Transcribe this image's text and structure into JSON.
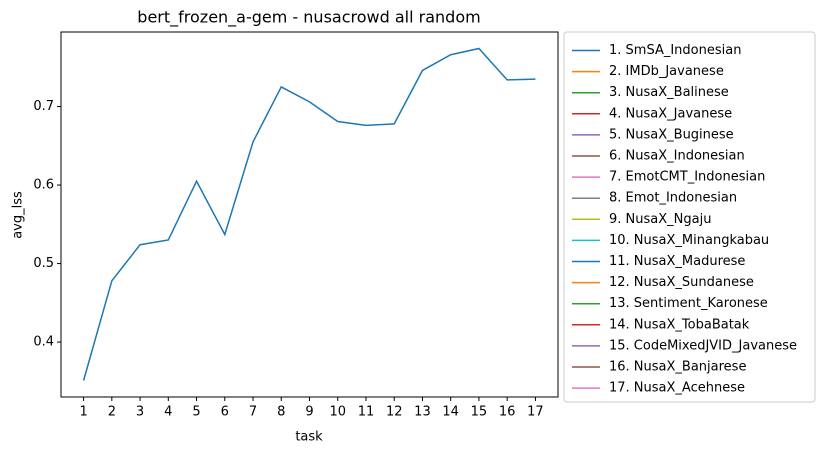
{
  "chart_data": {
    "type": "line",
    "title": "bert_frozen_a-gem - nusacrowd all random",
    "x_label": "task",
    "y_label": "avg_lss",
    "x": [
      1,
      2,
      3,
      4,
      5,
      6,
      7,
      8,
      9,
      10,
      11,
      12,
      13,
      14,
      15,
      16,
      17
    ],
    "xlim": [
      0.2,
      17.8
    ],
    "xticks": [
      1,
      2,
      3,
      4,
      5,
      6,
      7,
      8,
      9,
      10,
      11,
      12,
      13,
      14,
      15,
      16,
      17
    ],
    "ylim": [
      0.33,
      0.795
    ],
    "yticks": [
      0.4,
      0.5,
      0.6,
      0.7
    ],
    "legend": "outside right",
    "series": [
      {
        "name": "1. SmSA_Indonesian",
        "color": "#1f77b4",
        "values": [
          0.351,
          0.478,
          0.524,
          0.53,
          0.605,
          0.537,
          0.655,
          0.725,
          0.706,
          0.681,
          0.676,
          0.678,
          0.746,
          0.766,
          0.774,
          0.734,
          0.735
        ]
      },
      {
        "name": "2. IMDb_Javanese",
        "color": "#ff7f0e",
        "values": [
          null,
          null,
          null,
          null,
          null,
          null,
          null,
          null,
          null,
          null,
          null,
          null,
          null,
          null,
          null,
          null,
          null
        ]
      },
      {
        "name": "3. NusaX_Balinese",
        "color": "#2ca02c",
        "values": [
          null,
          null,
          null,
          null,
          null,
          null,
          null,
          null,
          null,
          null,
          null,
          null,
          null,
          null,
          null,
          null,
          null
        ]
      },
      {
        "name": "4. NusaX_Javanese",
        "color": "#d62728",
        "values": [
          null,
          null,
          null,
          null,
          null,
          null,
          null,
          null,
          null,
          null,
          null,
          null,
          null,
          null,
          null,
          null,
          null
        ]
      },
      {
        "name": "5. NusaX_Buginese",
        "color": "#9467bd",
        "values": [
          null,
          null,
          null,
          null,
          null,
          null,
          null,
          null,
          null,
          null,
          null,
          null,
          null,
          null,
          null,
          null,
          null
        ]
      },
      {
        "name": "6. NusaX_Indonesian",
        "color": "#8c564b",
        "values": [
          null,
          null,
          null,
          null,
          null,
          null,
          null,
          null,
          null,
          null,
          null,
          null,
          null,
          null,
          null,
          null,
          null
        ]
      },
      {
        "name": "7. EmotCMT_Indonesian",
        "color": "#e377c2",
        "values": [
          null,
          null,
          null,
          null,
          null,
          null,
          null,
          null,
          null,
          null,
          null,
          null,
          null,
          null,
          null,
          null,
          null
        ]
      },
      {
        "name": "8. Emot_Indonesian",
        "color": "#7f7f7f",
        "values": [
          null,
          null,
          null,
          null,
          null,
          null,
          null,
          null,
          null,
          null,
          null,
          null,
          null,
          null,
          null,
          null,
          null
        ]
      },
      {
        "name": "9. NusaX_Ngaju",
        "color": "#bcbd22",
        "values": [
          null,
          null,
          null,
          null,
          null,
          null,
          null,
          null,
          null,
          null,
          null,
          null,
          null,
          null,
          null,
          null,
          null
        ]
      },
      {
        "name": "10. NusaX_Minangkabau",
        "color": "#17becf",
        "values": [
          null,
          null,
          null,
          null,
          null,
          null,
          null,
          null,
          null,
          null,
          null,
          null,
          null,
          null,
          null,
          null,
          null
        ]
      },
      {
        "name": "11. NusaX_Madurese",
        "color": "#1f77b4",
        "values": [
          null,
          null,
          null,
          null,
          null,
          null,
          null,
          null,
          null,
          null,
          null,
          null,
          null,
          null,
          null,
          null,
          null
        ]
      },
      {
        "name": "12. NusaX_Sundanese",
        "color": "#ff7f0e",
        "values": [
          null,
          null,
          null,
          null,
          null,
          null,
          null,
          null,
          null,
          null,
          null,
          null,
          null,
          null,
          null,
          null,
          null
        ]
      },
      {
        "name": "13. Sentiment_Karonese",
        "color": "#2ca02c",
        "values": [
          null,
          null,
          null,
          null,
          null,
          null,
          null,
          null,
          null,
          null,
          null,
          null,
          null,
          null,
          null,
          null,
          null
        ]
      },
      {
        "name": "14. NusaX_TobaBatak",
        "color": "#d62728",
        "values": [
          null,
          null,
          null,
          null,
          null,
          null,
          null,
          null,
          null,
          null,
          null,
          null,
          null,
          null,
          null,
          null,
          null
        ]
      },
      {
        "name": "15. CodeMixedJVID_Javanese",
        "color": "#9467bd",
        "values": [
          null,
          null,
          null,
          null,
          null,
          null,
          null,
          null,
          null,
          null,
          null,
          null,
          null,
          null,
          null,
          null,
          null
        ]
      },
      {
        "name": "16. NusaX_Banjarese",
        "color": "#8c564b",
        "values": [
          null,
          null,
          null,
          null,
          null,
          null,
          null,
          null,
          null,
          null,
          null,
          null,
          null,
          null,
          null,
          null,
          null
        ]
      },
      {
        "name": "17. NusaX_Acehnese",
        "color": "#e377c2",
        "values": [
          null,
          null,
          null,
          null,
          null,
          null,
          null,
          null,
          null,
          null,
          null,
          null,
          null,
          null,
          null,
          null,
          null
        ]
      }
    ]
  }
}
